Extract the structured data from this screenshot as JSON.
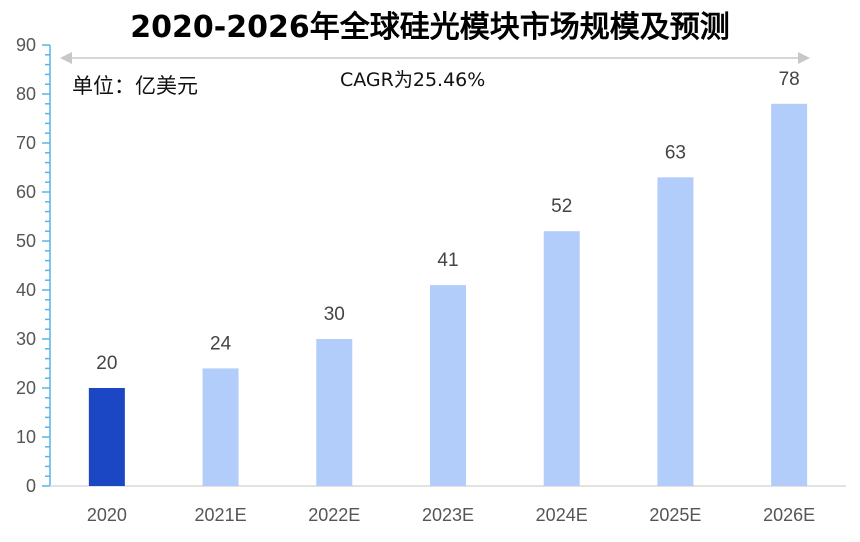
{
  "title": "2020-2026年全球硅光模块市场规模及预测",
  "unit_label": "单位：亿美元",
  "annotation": "CAGR为25.46%",
  "colors": {
    "actual": "#1b47c4",
    "forecast": "#b3cdfa",
    "axis": "#5ab4e5",
    "text": "#555555"
  },
  "chart_data": {
    "type": "bar",
    "categories": [
      "2020",
      "2021E",
      "2022E",
      "2023E",
      "2024E",
      "2025E",
      "2026E"
    ],
    "values": [
      20,
      24,
      30,
      41,
      52,
      63,
      78
    ],
    "highlight_index": 0,
    "ylim": [
      0,
      90
    ],
    "yticks": [
      0,
      10,
      20,
      30,
      40,
      50,
      60,
      70,
      80,
      90
    ],
    "xlabel": "",
    "ylabel": "",
    "legend": "none",
    "grid": false
  }
}
